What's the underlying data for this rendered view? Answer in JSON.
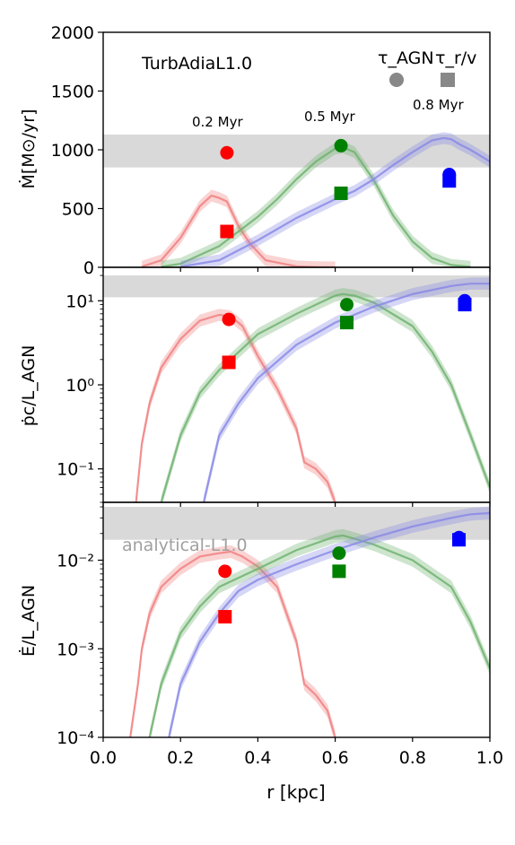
{
  "figure": {
    "xlabel": "r [kpc]",
    "x_ticks": [
      "0.0",
      "0.2",
      "0.4",
      "0.6",
      "0.8",
      "1.0"
    ],
    "run_label": "TurbAdiaL1.0",
    "legend": {
      "circle_label": "τ_AGN",
      "square_label": "τ_r/v",
      "marker_color": "#888888"
    },
    "time_labels": [
      "0.2 Myr",
      "0.5 Myr",
      "0.8 Myr"
    ],
    "analytical_label": "analytical-L1.0",
    "colors": {
      "red": "#f08080",
      "green": "#6fb36f",
      "blue": "#8a8ae6",
      "red_marker": "#ff0000",
      "green_marker": "#008000",
      "blue_marker": "#0000ff",
      "band": "#d9d9d9"
    }
  },
  "chart_data": [
    {
      "type": "line",
      "panel": "top",
      "ylabel": "Ṁ[M⊙/yr]",
      "yscale": "linear",
      "ylim": [
        0,
        2000
      ],
      "xlim": [
        0,
        1.0
      ],
      "y_ticks": [
        "0",
        "500",
        "1000",
        "1500",
        "2000"
      ],
      "y_tick_values": [
        0,
        500,
        1000,
        1500,
        2000
      ],
      "band": [
        850,
        1130
      ],
      "series": [
        {
          "color": "red",
          "x": [
            0.1,
            0.15,
            0.2,
            0.25,
            0.28,
            0.3,
            0.32,
            0.35,
            0.38,
            0.42,
            0.5,
            0.55,
            0.6
          ],
          "y": [
            5,
            60,
            250,
            520,
            610,
            590,
            560,
            350,
            200,
            60,
            8,
            2,
            0
          ]
        },
        {
          "color": "green",
          "x": [
            0.15,
            0.2,
            0.3,
            0.4,
            0.45,
            0.5,
            0.55,
            0.6,
            0.62,
            0.65,
            0.7,
            0.75,
            0.8,
            0.85,
            0.9,
            0.95
          ],
          "y": [
            5,
            30,
            180,
            430,
            580,
            750,
            900,
            1010,
            1020,
            980,
            740,
            440,
            220,
            80,
            20,
            5
          ]
        },
        {
          "color": "blue",
          "x": [
            0.2,
            0.3,
            0.4,
            0.5,
            0.6,
            0.65,
            0.7,
            0.75,
            0.8,
            0.85,
            0.88,
            0.9,
            0.92,
            0.95,
            1.0
          ],
          "y": [
            5,
            60,
            230,
            420,
            580,
            650,
            750,
            870,
            980,
            1080,
            1100,
            1090,
            1050,
            1000,
            900
          ]
        }
      ],
      "markers": [
        {
          "color": "red_marker",
          "shape": "circle",
          "x": 0.32,
          "y": 975
        },
        {
          "color": "red_marker",
          "shape": "square",
          "x": 0.32,
          "y": 305
        },
        {
          "color": "green_marker",
          "shape": "circle",
          "x": 0.615,
          "y": 1035
        },
        {
          "color": "green_marker",
          "shape": "square",
          "x": 0.615,
          "y": 630
        },
        {
          "color": "blue_marker",
          "shape": "circle",
          "x": 0.895,
          "y": 790
        },
        {
          "color": "blue_marker",
          "shape": "square",
          "x": 0.895,
          "y": 735
        }
      ]
    },
    {
      "type": "line",
      "panel": "middle",
      "ylabel": "ṗc/L_AGN",
      "yscale": "log",
      "ylim": [
        0.04,
        25
      ],
      "xlim": [
        0,
        1.0
      ],
      "y_ticks": [
        "10¹",
        "10⁰",
        "10⁻¹"
      ],
      "y_tick_values": [
        10,
        1,
        0.1
      ],
      "band": [
        11,
        20
      ],
      "series": [
        {
          "color": "red",
          "x": [
            0.085,
            0.1,
            0.12,
            0.15,
            0.2,
            0.25,
            0.3,
            0.33,
            0.36,
            0.4,
            0.45,
            0.5,
            0.52,
            0.55,
            0.58,
            0.6
          ],
          "y": [
            0.04,
            0.2,
            0.6,
            1.6,
            3.5,
            5.8,
            6.8,
            6.5,
            5.0,
            2.2,
            0.9,
            0.3,
            0.12,
            0.1,
            0.07,
            0.04
          ]
        },
        {
          "color": "green",
          "x": [
            0.15,
            0.2,
            0.25,
            0.3,
            0.4,
            0.5,
            0.55,
            0.6,
            0.62,
            0.65,
            0.7,
            0.8,
            0.85,
            0.9,
            0.95,
            1.0
          ],
          "y": [
            0.04,
            0.25,
            0.8,
            1.5,
            4,
            7,
            9,
            11.5,
            12,
            11.5,
            9.5,
            5,
            2.5,
            1,
            0.25,
            0.06
          ]
        },
        {
          "color": "blue",
          "x": [
            0.26,
            0.3,
            0.35,
            0.4,
            0.5,
            0.6,
            0.7,
            0.8,
            0.9,
            0.95,
            1.0
          ],
          "y": [
            0.04,
            0.25,
            0.6,
            1.2,
            3,
            5.5,
            8.5,
            12,
            15,
            16,
            16
          ]
        }
      ],
      "markers": [
        {
          "color": "red_marker",
          "shape": "circle",
          "x": 0.325,
          "y": 6.0
        },
        {
          "color": "red_marker",
          "shape": "square",
          "x": 0.325,
          "y": 1.85
        },
        {
          "color": "green_marker",
          "shape": "circle",
          "x": 0.63,
          "y": 9.0
        },
        {
          "color": "green_marker",
          "shape": "square",
          "x": 0.63,
          "y": 5.5
        },
        {
          "color": "blue_marker",
          "shape": "circle",
          "x": 0.935,
          "y": 10.0
        },
        {
          "color": "blue_marker",
          "shape": "square",
          "x": 0.935,
          "y": 9.0
        }
      ]
    },
    {
      "type": "line",
      "panel": "bottom",
      "ylabel": "Ė/L_AGN",
      "yscale": "log",
      "ylim": [
        0.0001,
        0.045
      ],
      "xlim": [
        0,
        1.0
      ],
      "y_ticks": [
        "10⁻²",
        "10⁻³",
        "10⁻⁴"
      ],
      "y_tick_values": [
        0.01,
        0.001,
        0.0001
      ],
      "band": [
        0.017,
        0.04
      ],
      "series": [
        {
          "color": "red",
          "x": [
            0.07,
            0.09,
            0.1,
            0.12,
            0.15,
            0.2,
            0.25,
            0.3,
            0.33,
            0.36,
            0.4,
            0.45,
            0.5,
            0.52,
            0.55,
            0.58,
            0.6
          ],
          "y": [
            0.0001,
            0.0004,
            0.001,
            0.0025,
            0.005,
            0.008,
            0.011,
            0.012,
            0.0125,
            0.011,
            0.0085,
            0.005,
            0.0012,
            0.0004,
            0.0003,
            0.0002,
            0.0001
          ]
        },
        {
          "color": "green",
          "x": [
            0.12,
            0.15,
            0.2,
            0.25,
            0.3,
            0.4,
            0.5,
            0.6,
            0.62,
            0.65,
            0.7,
            0.8,
            0.9,
            0.95,
            1.0
          ],
          "y": [
            0.0001,
            0.0004,
            0.0015,
            0.003,
            0.005,
            0.008,
            0.013,
            0.0185,
            0.019,
            0.0175,
            0.015,
            0.01,
            0.005,
            0.002,
            0.0006
          ]
        },
        {
          "color": "blue",
          "x": [
            0.17,
            0.2,
            0.25,
            0.3,
            0.35,
            0.4,
            0.5,
            0.6,
            0.7,
            0.8,
            0.9,
            0.95,
            1.0
          ],
          "y": [
            0.0001,
            0.0004,
            0.0012,
            0.0025,
            0.0045,
            0.006,
            0.009,
            0.013,
            0.018,
            0.024,
            0.03,
            0.033,
            0.034
          ]
        }
      ],
      "markers": [
        {
          "color": "red_marker",
          "shape": "circle",
          "x": 0.315,
          "y": 0.0075
        },
        {
          "color": "red_marker",
          "shape": "square",
          "x": 0.315,
          "y": 0.0023
        },
        {
          "color": "green_marker",
          "shape": "circle",
          "x": 0.61,
          "y": 0.012
        },
        {
          "color": "green_marker",
          "shape": "square",
          "x": 0.61,
          "y": 0.0075
        },
        {
          "color": "blue_marker",
          "shape": "circle",
          "x": 0.92,
          "y": 0.018
        },
        {
          "color": "blue_marker",
          "shape": "square",
          "x": 0.92,
          "y": 0.017
        }
      ]
    }
  ]
}
